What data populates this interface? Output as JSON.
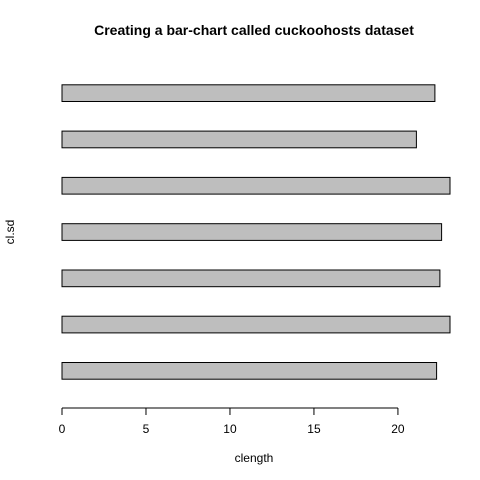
{
  "chart_data": {
    "type": "bar",
    "orientation": "horizontal",
    "title": "Creating a bar-chart called cuckoohosts dataset",
    "xlabel": "clength",
    "ylabel": "cl.sd",
    "values": [
      22.3,
      23.1,
      22.5,
      22.6,
      23.1,
      21.1,
      22.2
    ],
    "xlim": [
      0,
      23.1
    ],
    "xticks": [
      0,
      5,
      10,
      15,
      20
    ],
    "bar_color": "#bebebe",
    "grid": false,
    "legend": "none"
  }
}
